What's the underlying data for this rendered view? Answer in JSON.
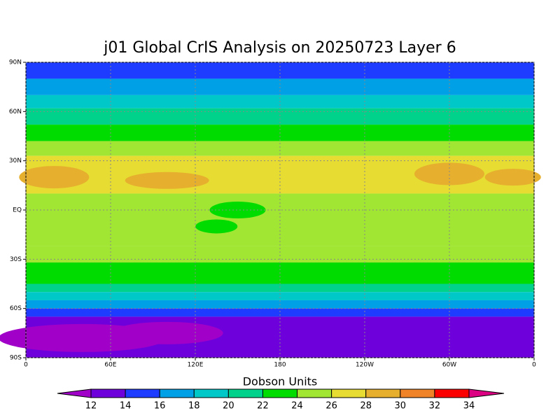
{
  "chart_data": {
    "type": "map",
    "title": "j01 Global CrIS Analysis on 20250723 Layer 6",
    "xlim": [
      0,
      360
    ],
    "ylim": [
      -90,
      90
    ],
    "xticks": [
      0,
      {
        "value": 60,
        "label": "60E"
      },
      {
        "value": 120,
        "label": "120E"
      },
      180,
      {
        "value": 240,
        "label": "120W"
      },
      {
        "value": 300,
        "label": "60W"
      },
      {
        "value": 360,
        "label": "0"
      }
    ],
    "yticks": [
      {
        "value": 90,
        "label": "90N"
      },
      {
        "value": 60,
        "label": "60N"
      },
      {
        "value": 30,
        "label": "30N"
      },
      {
        "value": 0,
        "label": "EQ"
      },
      {
        "value": -30,
        "label": "30S"
      },
      {
        "value": -60,
        "label": "60S"
      },
      {
        "value": -90,
        "label": "90S"
      }
    ],
    "grid": true,
    "colorbar": {
      "title": "Dobson Units",
      "levels": [
        12,
        14,
        16,
        18,
        20,
        22,
        24,
        26,
        28,
        30,
        32,
        34
      ],
      "colors": [
        "#a000c8",
        "#6e00dc",
        "#1e3cff",
        "#00a0e6",
        "#00c8c8",
        "#00d28c",
        "#00dc00",
        "#a0e632",
        "#e6dc32",
        "#e6af2d",
        "#f08228",
        "#fa0000",
        "#dc0082"
      ]
    }
  }
}
